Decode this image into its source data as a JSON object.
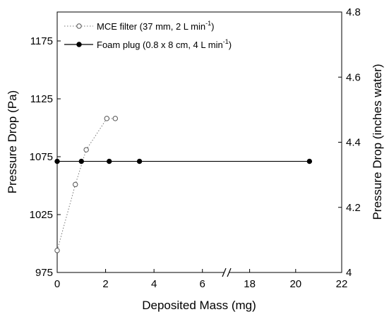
{
  "chart_data": {
    "type": "scatter",
    "xlabel": "Deposited Mass (mg)",
    "ylabel": "Pressure Drop (Pa)",
    "y2label": "Pressure Drop (inches water)",
    "ylim": [
      975,
      1200
    ],
    "y2lim": [
      4.0,
      4.8
    ],
    "x_break": {
      "left_range": [
        0,
        7
      ],
      "right_range": [
        17,
        22
      ],
      "marker": "//"
    },
    "xticks": [
      "0",
      "2",
      "4",
      "6",
      "18",
      "20",
      "22"
    ],
    "yticks": [
      "975",
      "1025",
      "1075",
      "1125",
      "1175"
    ],
    "y2ticks": [
      "4",
      "4.2",
      "4.4",
      "4.6",
      "4.8"
    ],
    "legend_position": "top-left",
    "series": [
      {
        "name": "MCE filter (37 mm, 2 L min",
        "name_sup": "-1",
        "name_tail": ")",
        "marker": "open-circle",
        "line": "dotted",
        "color": "#666666",
        "x": [
          0,
          0.75,
          1.2,
          2.05,
          2.4
        ],
        "y": [
          994,
          1051,
          1081,
          1108,
          1108
        ]
      },
      {
        "name": "Foam plug (0.8 x 8 cm, 4 L min",
        "name_sup": "-1",
        "name_tail": ")",
        "marker": "filled-circle",
        "line": "solid",
        "color": "#000000",
        "x": [
          0,
          1,
          2.15,
          3.4,
          20.6
        ],
        "y": [
          1071,
          1071,
          1071,
          1071,
          1071
        ]
      }
    ]
  }
}
